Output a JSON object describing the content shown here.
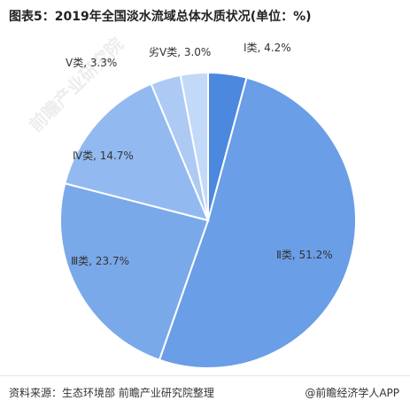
{
  "title": "图表5：2019年全国淡水流域总体水质状况(单位：%)",
  "footer": {
    "source": "资料来源：生态环境部 前瞻产业研究院整理",
    "brand": "@前瞻经济学人APP"
  },
  "watermark": "前瞻产业研究院",
  "colors": {
    "slices": [
      "#4b88de",
      "#6a9ee6",
      "#7aa9ea",
      "#92baf0",
      "#adcaf4",
      "#c3d9f8"
    ],
    "stroke": "#ffffff"
  },
  "chart_data": {
    "type": "pie",
    "title": "图表5：2019年全国淡水流域总体水质状况(单位：%)",
    "slices": [
      {
        "name": "Ⅰ类",
        "value": 4.2,
        "label": "Ⅰ类, 4.2%"
      },
      {
        "name": "Ⅱ类",
        "value": 51.2,
        "label": "Ⅱ类, 51.2%"
      },
      {
        "name": "Ⅲ类",
        "value": 23.7,
        "label": "Ⅲ类, 23.7%"
      },
      {
        "name": "Ⅳ类",
        "value": 14.7,
        "label": "Ⅳ类, 14.7%"
      },
      {
        "name": "Ⅴ类",
        "value": 3.3,
        "label": "Ⅴ类, 3.3%"
      },
      {
        "name": "劣Ⅴ类",
        "value": 3.0,
        "label": "劣Ⅴ类, 3.0%"
      }
    ],
    "legend": false
  }
}
